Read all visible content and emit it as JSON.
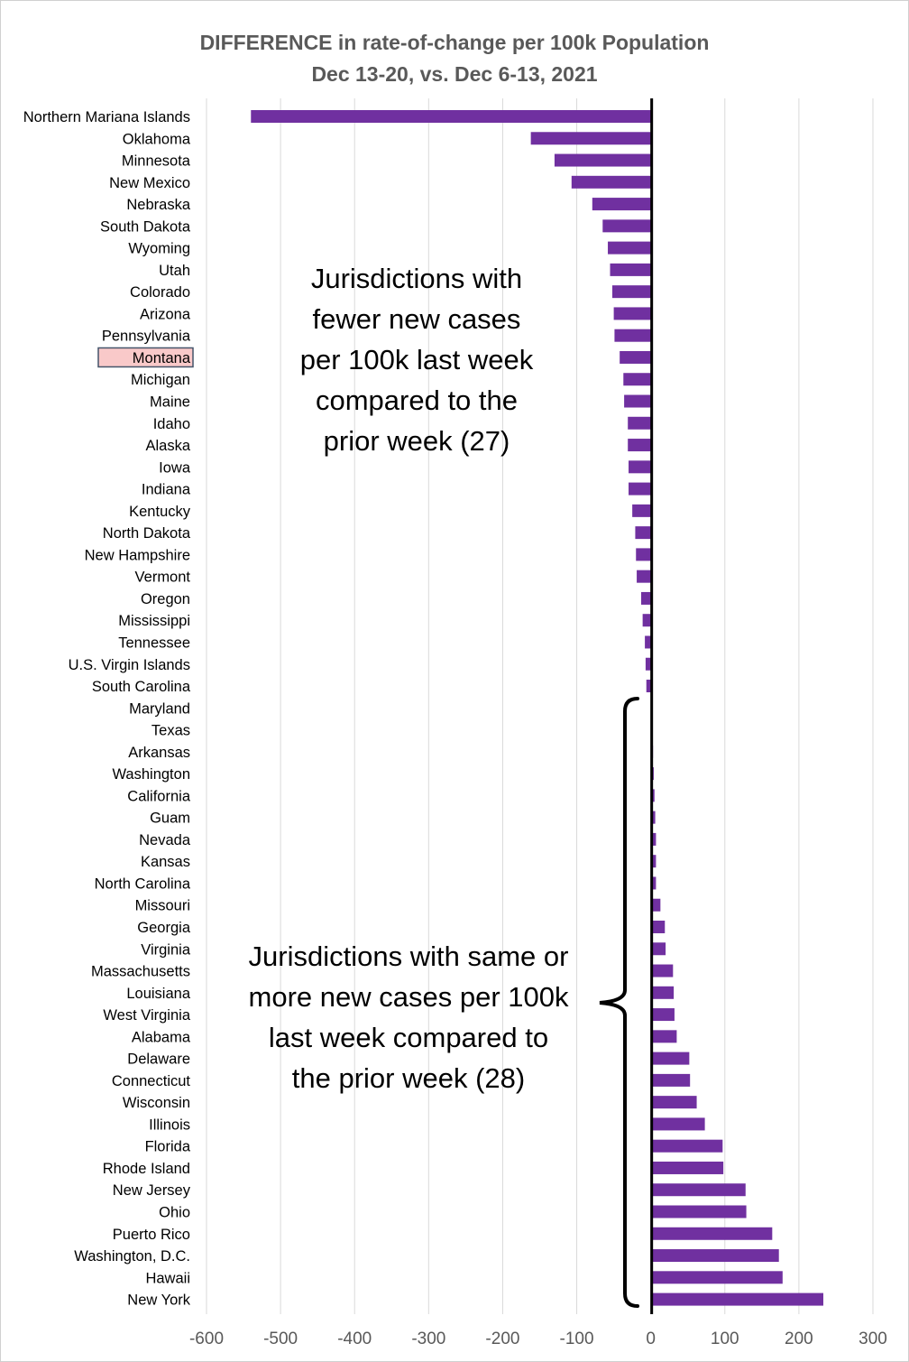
{
  "chart_data": {
    "type": "bar",
    "orientation": "horizontal",
    "title": "DIFFERENCE in rate-of-change per 100k Population",
    "subtitle": "Dec 13-20, vs. Dec 6-13, 2021",
    "xlabel": "",
    "ylabel": "",
    "xlim": [
      -600,
      300
    ],
    "xticks": [
      -600,
      -500,
      -400,
      -300,
      -200,
      -100,
      0,
      100,
      200,
      300
    ],
    "grid": true,
    "bar_color": "#7030A0",
    "highlight_category": "Montana",
    "highlight_color": "#F9C9C9",
    "highlight_border": "#44546A",
    "categories": [
      "Northern Mariana Islands",
      "Oklahoma",
      "Minnesota",
      "New Mexico",
      "Nebraska",
      "South Dakota",
      "Wyoming",
      "Utah",
      "Colorado",
      "Arizona",
      "Pennsylvania",
      "Montana",
      "Michigan",
      "Maine",
      "Idaho",
      "Alaska",
      "Iowa",
      "Indiana",
      "Kentucky",
      "North Dakota",
      "New Hampshire",
      "Vermont",
      "Oregon",
      "Mississippi",
      "Tennessee",
      "U.S. Virgin Islands",
      "South Carolina",
      "Maryland",
      "Texas",
      "Arkansas",
      "Washington",
      "California",
      "Guam",
      "Nevada",
      "Kansas",
      "North Carolina",
      "Missouri",
      "Georgia",
      "Virginia",
      "Massachusetts",
      "Louisiana",
      "West Virginia",
      "Alabama",
      "Delaware",
      "Connecticut",
      "Wisconsin",
      "Illinois",
      "Florida",
      "Rhode Island",
      "New Jersey",
      "Ohio",
      "Puerto Rico",
      "Washington, D.C.",
      "Hawaii",
      "New York"
    ],
    "values": [
      -540,
      -162,
      -130,
      -107,
      -79,
      -65,
      -58,
      -55,
      -52,
      -50,
      -49,
      -42,
      -37,
      -36,
      -31,
      -31,
      -30,
      -30,
      -25,
      -21,
      -20,
      -19,
      -13,
      -11,
      -8,
      -7,
      -6,
      0,
      2,
      3,
      4,
      5,
      6,
      7,
      7,
      7,
      13,
      19,
      20,
      30,
      31,
      32,
      35,
      52,
      53,
      62,
      73,
      97,
      98,
      128,
      129,
      164,
      173,
      178,
      233
    ],
    "annotations": [
      {
        "name": "fewer",
        "lines": [
          "Jurisdictions with",
          "fewer new cases",
          "per 100k last week",
          "compared to the",
          "prior week (27)"
        ]
      },
      {
        "name": "same-or-more",
        "lines": [
          "Jurisdictions with same or",
          "more new cases per 100k",
          "last week compared to",
          "the prior week (28)"
        ]
      }
    ]
  }
}
